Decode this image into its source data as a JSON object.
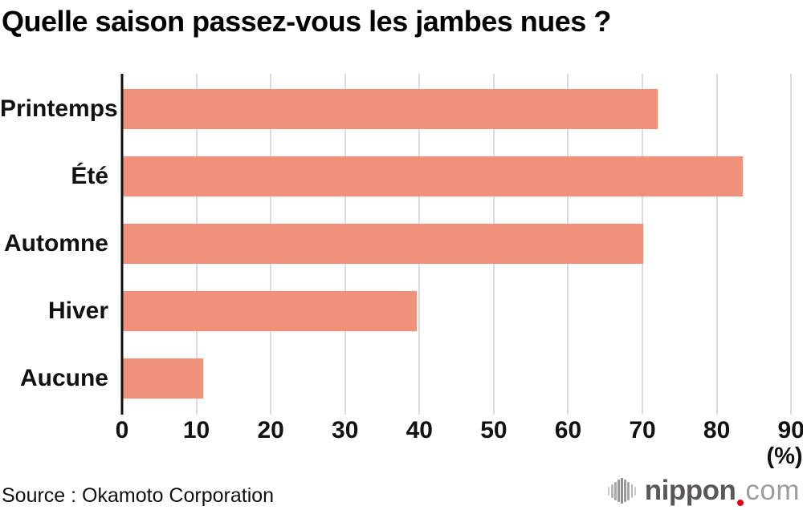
{
  "title": "Quelle saison passez-vous les jambes nues ?",
  "footer": {
    "source": "Source : Okamoto Corporation"
  },
  "logo": {
    "icon": "soundwave-icon",
    "brand": "nippon",
    "tld": "com",
    "icon_bars": [
      11,
      17,
      23,
      28,
      32,
      28,
      23,
      17,
      11
    ],
    "icon_colors": [
      "#c9c9c9",
      "#b7b7b7",
      "#a7a7a7",
      "#9a9a9a",
      "#919191",
      "#9a9a9a",
      "#a7a7a7",
      "#b7b7b7",
      "#c9c9c9"
    ]
  },
  "colors": {
    "bar": "#F0917A",
    "grid": "#DBDBDB",
    "axis": "#111111",
    "text": "#111111",
    "logo_dark": "#595757",
    "logo_light": "#9B9B9B",
    "logo_red": "#E60012"
  },
  "chart_data": {
    "type": "bar",
    "orientation": "horizontal",
    "title": "Quelle saison passez-vous les jambes nues ?",
    "categories": [
      "Printemps",
      "Été",
      "Automne",
      "Hiver",
      "Aucune"
    ],
    "values": [
      71.9,
      83.4,
      70.0,
      39.5,
      10.8
    ],
    "xlabel": "(%)",
    "xlim": [
      0,
      90
    ],
    "xticks": [
      0,
      10,
      20,
      30,
      40,
      50,
      60,
      70,
      80,
      90
    ],
    "grid": true,
    "legend": false,
    "bar_color": "#F0917A"
  }
}
